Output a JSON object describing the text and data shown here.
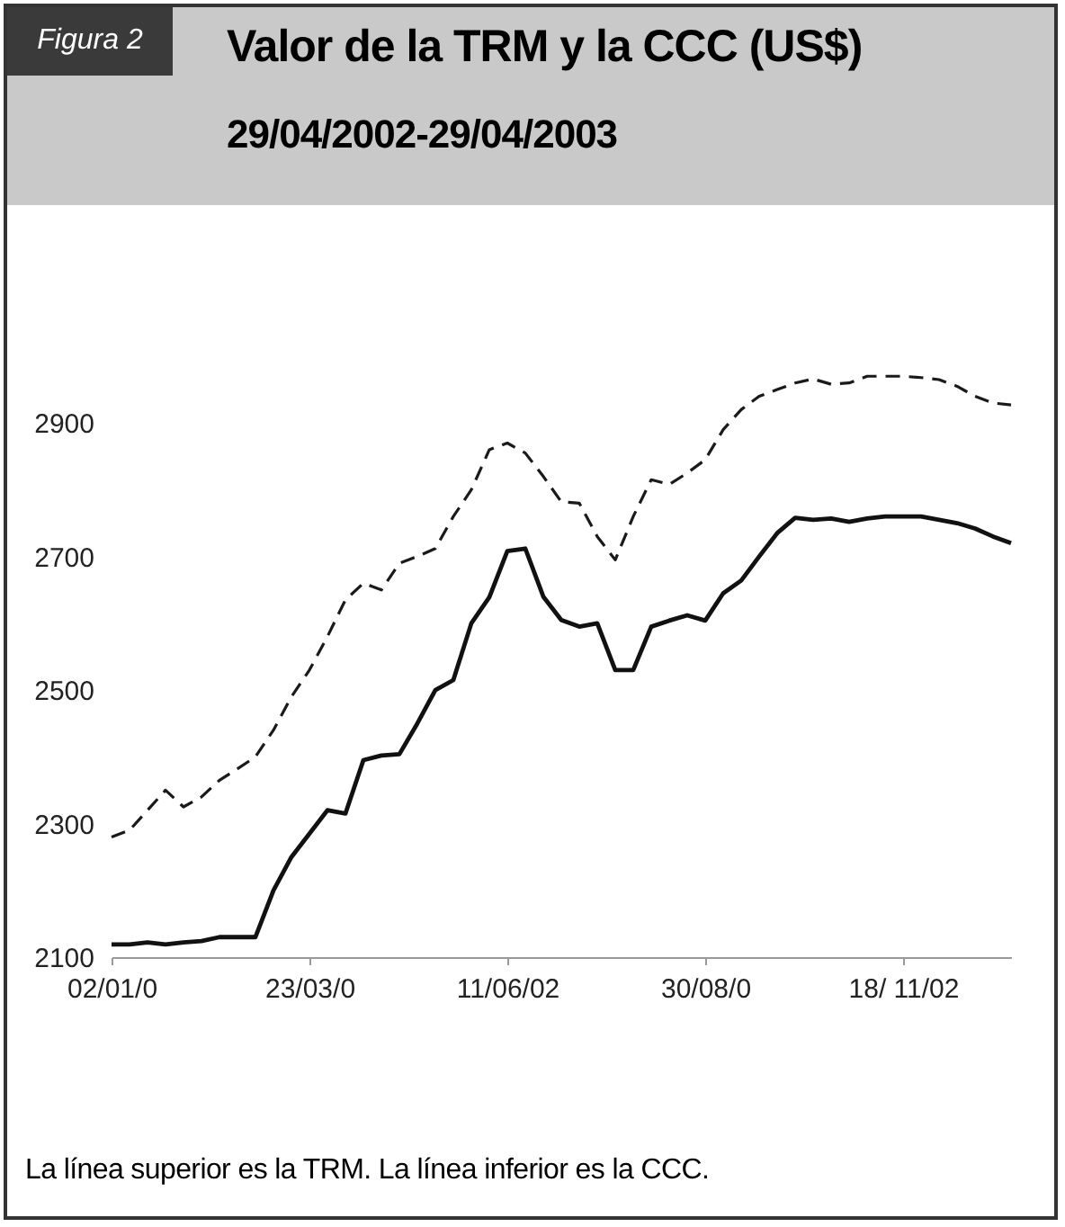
{
  "chart_data": {
    "type": "line",
    "title": "Valor de la TRM y la CCC (US$)",
    "subtitle": "29/04/2002-29/04/2003",
    "annotations": [
      "Figura 2",
      "La línea superior es la TRM. La línea inferior es la CCC."
    ],
    "categories": [
      "02/01/0",
      null,
      null,
      null,
      null,
      null,
      null,
      null,
      null,
      null,
      null,
      "23/03/0",
      null,
      null,
      null,
      null,
      null,
      null,
      null,
      null,
      null,
      null,
      "11/06/02",
      null,
      null,
      null,
      null,
      null,
      null,
      null,
      null,
      null,
      null,
      "30/08/0",
      null,
      null,
      null,
      null,
      null,
      null,
      null,
      null,
      null,
      null,
      "18/ 11/02",
      null,
      null,
      null,
      null,
      null,
      null
    ],
    "series": [
      {
        "color": "#1a1a1a",
        "line_style": "dashed",
        "values": [
          2280,
          2290,
          2320,
          2350,
          2325,
          2340,
          2365,
          2382,
          2400,
          2440,
          2490,
          2530,
          2580,
          2635,
          2660,
          2650,
          2690,
          2700,
          2712,
          2760,
          2800,
          2860,
          2870,
          2855,
          2820,
          2782,
          2780,
          2730,
          2695,
          2760,
          2815,
          2808,
          2825,
          2845,
          2890,
          2920,
          2940,
          2950,
          2960,
          2966,
          2958,
          2960,
          2970,
          2970,
          2970,
          2968,
          2965,
          2955,
          2940,
          2930,
          2927
        ]
      },
      {
        "color": "#111111",
        "line_style": "solid",
        "values": [
          2119,
          2119,
          2122,
          2119,
          2122,
          2124,
          2130,
          2130,
          2130,
          2200,
          2250,
          2285,
          2320,
          2315,
          2395,
          2402,
          2404,
          2450,
          2500,
          2515,
          2600,
          2639,
          2708,
          2712,
          2640,
          2605,
          2595,
          2600,
          2530,
          2530,
          2595,
          2604,
          2612,
          2604,
          2645,
          2664,
          2700,
          2735,
          2758,
          2755,
          2757,
          2752,
          2757,
          2760,
          2760,
          2760,
          2755,
          2750,
          2742,
          2730,
          2720
        ]
      }
    ],
    "ylim": [
      2100,
      3000
    ],
    "yticks": [
      2100,
      2300,
      2500,
      2700,
      2900
    ],
    "grid": false,
    "marker": "none"
  }
}
